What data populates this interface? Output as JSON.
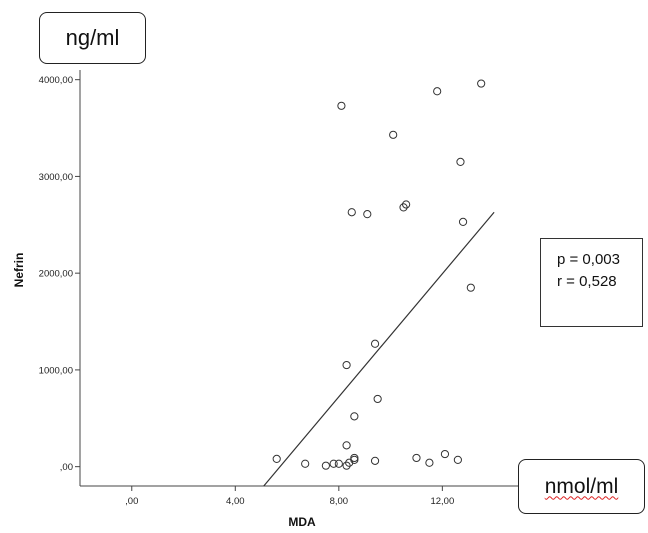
{
  "chart_data": {
    "type": "scatter",
    "xlabel": "MDA",
    "ylabel": "Nefrin",
    "xlim": [
      -2,
      15
    ],
    "ylim": [
      -200,
      4100
    ],
    "x_ticks": [
      {
        "value": 0,
        "label": ",00"
      },
      {
        "value": 4,
        "label": "4,00"
      },
      {
        "value": 8,
        "label": "8,00"
      },
      {
        "value": 12,
        "label": "12,00"
      }
    ],
    "y_ticks": [
      {
        "value": 0,
        "label": ",00"
      },
      {
        "value": 1000,
        "label": "1000,00"
      },
      {
        "value": 2000,
        "label": "2000,00"
      },
      {
        "value": 3000,
        "label": "3000,00"
      },
      {
        "value": 4000,
        "label": "4000,00"
      }
    ],
    "grid": false,
    "points": [
      {
        "x": 5.6,
        "y": 80
      },
      {
        "x": 6.7,
        "y": 30
      },
      {
        "x": 7.5,
        "y": 10
      },
      {
        "x": 7.8,
        "y": 30
      },
      {
        "x": 8.0,
        "y": 30
      },
      {
        "x": 8.3,
        "y": 10
      },
      {
        "x": 8.3,
        "y": 220
      },
      {
        "x": 8.4,
        "y": 40
      },
      {
        "x": 8.6,
        "y": 70
      },
      {
        "x": 8.6,
        "y": 90
      },
      {
        "x": 9.4,
        "y": 60
      },
      {
        "x": 11.0,
        "y": 90
      },
      {
        "x": 11.5,
        "y": 40
      },
      {
        "x": 12.1,
        "y": 130
      },
      {
        "x": 12.6,
        "y": 70
      },
      {
        "x": 8.3,
        "y": 1050
      },
      {
        "x": 8.6,
        "y": 520
      },
      {
        "x": 9.5,
        "y": 700
      },
      {
        "x": 9.4,
        "y": 1270
      },
      {
        "x": 8.1,
        "y": 3730
      },
      {
        "x": 8.5,
        "y": 2630
      },
      {
        "x": 9.1,
        "y": 2610
      },
      {
        "x": 10.1,
        "y": 3430
      },
      {
        "x": 10.5,
        "y": 2680
      },
      {
        "x": 10.6,
        "y": 2710
      },
      {
        "x": 11.8,
        "y": 3880
      },
      {
        "x": 12.7,
        "y": 3150
      },
      {
        "x": 12.8,
        "y": 2530
      },
      {
        "x": 13.1,
        "y": 1850
      },
      {
        "x": 13.5,
        "y": 3960
      }
    ],
    "fit_line": {
      "x": [
        5.1,
        14.0
      ],
      "y": [
        -200,
        2630
      ]
    },
    "annotations": {
      "y_unit": "ng/ml",
      "x_unit": "nmol/ml",
      "p_value": "p = 0,003",
      "r_value": "r = 0,528"
    }
  }
}
